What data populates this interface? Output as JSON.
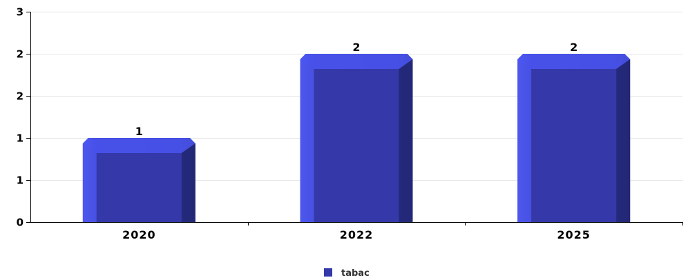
{
  "chart_data": {
    "type": "bar",
    "categories": [
      "2020",
      "2022",
      "2025"
    ],
    "series": [
      {
        "name": "tabac",
        "values": [
          1,
          2,
          2
        ]
      }
    ],
    "data_labels": [
      "1",
      "2",
      "2"
    ],
    "yticks": [
      {
        "value": 0,
        "label": "0"
      },
      {
        "value": 0.5,
        "label": "1"
      },
      {
        "value": 1,
        "label": "1"
      },
      {
        "value": 1.5,
        "label": "2"
      },
      {
        "value": 2,
        "label": "2"
      },
      {
        "value": 2.5,
        "label": "3"
      }
    ],
    "ylim": [
      0,
      2.5
    ],
    "grid": true,
    "legend_position": "bottom",
    "colors": {
      "bar": "#3438a8",
      "bar_light": "#4a55f0",
      "bar_dark": "#242878",
      "grid": "#e6e6e6",
      "axis": "#000000"
    }
  }
}
